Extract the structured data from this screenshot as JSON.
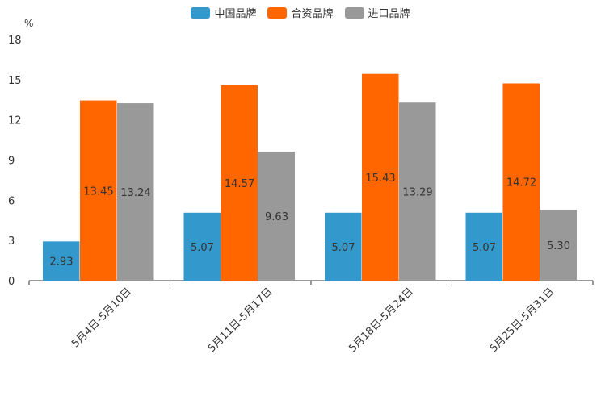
{
  "chart_data": {
    "type": "bar",
    "unit": "%",
    "categories": [
      "5月4日-5月10日",
      "5月11日-5月17日",
      "5月18日-5月24日",
      "5月25日-5月31日"
    ],
    "series": [
      {
        "name": "中国品牌",
        "color": "#3399cc",
        "values": [
          2.93,
          5.07,
          5.07,
          5.07
        ],
        "labels": [
          "2.93",
          "5.07",
          "5.07",
          "5.07"
        ]
      },
      {
        "name": "合资品牌",
        "color": "#ff6600",
        "values": [
          13.45,
          14.57,
          15.43,
          14.72
        ],
        "labels": [
          "13.45",
          "14.57",
          "15.43",
          "14.72"
        ]
      },
      {
        "name": "进口品牌",
        "color": "#999999",
        "values": [
          13.24,
          9.63,
          13.29,
          5.3
        ],
        "labels": [
          "13.24",
          "9.63",
          "13.29",
          "5.30"
        ]
      }
    ],
    "ylim": [
      0,
      18
    ],
    "yticks": [
      "0",
      "3",
      "6",
      "9",
      "12",
      "15",
      "18"
    ],
    "legend_position": "top-center"
  }
}
